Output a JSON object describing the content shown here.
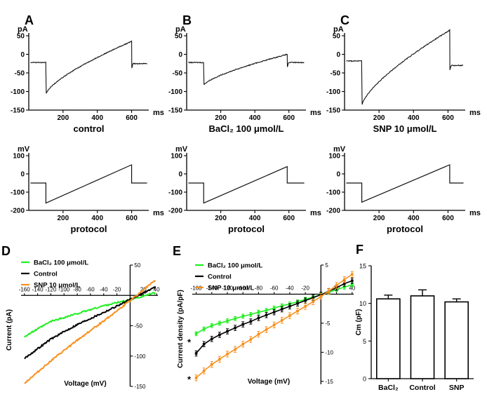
{
  "colors": {
    "bacl2": "#22ee22",
    "control": "#000000",
    "snp": "#f7901e",
    "trace": "#111111"
  },
  "chart_data": [
    {
      "id": "A",
      "type": "line",
      "panel_label": "A",
      "caption": "control",
      "ylabel": "pA",
      "xlabel": "ms",
      "xlim": [
        0,
        700
      ],
      "ylim": [
        -150,
        50
      ],
      "xticks": [
        200,
        400,
        600
      ],
      "yticks": [
        50,
        0,
        -50,
        -100,
        -150
      ],
      "trace": {
        "baseline": -22,
        "step_on": 100,
        "step_off": 600,
        "start": -105,
        "end": 35,
        "tail": -25
      }
    },
    {
      "id": "B",
      "type": "line",
      "panel_label": "B",
      "caption": "BaCl₂ 100 μmol/L",
      "ylabel": "pA",
      "xlabel": "ms",
      "xlim": [
        0,
        700
      ],
      "ylim": [
        -150,
        50
      ],
      "xticks": [
        200,
        400,
        600
      ],
      "yticks": [
        50,
        0,
        -50,
        -100,
        -150
      ],
      "trace": {
        "baseline": -22,
        "step_on": 100,
        "step_off": 590,
        "start": -82,
        "end": 0,
        "tail": -22
      }
    },
    {
      "id": "C",
      "type": "line",
      "panel_label": "C",
      "caption": "SNP 10 μmol/L",
      "ylabel": "pA",
      "xlabel": "ms",
      "xlim": [
        0,
        700
      ],
      "ylim": [
        -150,
        50
      ],
      "xticks": [
        200,
        400,
        600
      ],
      "yticks": [
        50,
        0,
        -50,
        -100,
        -150
      ],
      "trace": {
        "baseline": -18,
        "step_on": 100,
        "step_off": 610,
        "start": -135,
        "end": 65,
        "tail": -30
      }
    },
    {
      "id": "PA",
      "type": "line",
      "caption": "protocol",
      "ylabel": "mV",
      "xlabel": "ms",
      "xlim": [
        0,
        700
      ],
      "ylim": [
        -200,
        100
      ],
      "xticks": [
        200,
        400,
        600
      ],
      "yticks": [
        100,
        0,
        -100,
        -200
      ],
      "trace": {
        "hold": -50,
        "step_on": 100,
        "step_off": 600,
        "start": -160,
        "end": 50
      }
    },
    {
      "id": "PB",
      "type": "line",
      "caption": "protocol",
      "ylabel": "mV",
      "xlabel": "ms",
      "xlim": [
        0,
        700
      ],
      "ylim": [
        -200,
        100
      ],
      "xticks": [
        200,
        400,
        600
      ],
      "yticks": [
        100,
        0,
        -100,
        -200
      ],
      "trace": {
        "hold": -50,
        "step_on": 100,
        "step_off": 590,
        "start": -160,
        "end": 40
      }
    },
    {
      "id": "PC",
      "type": "line",
      "caption": "protocol",
      "ylabel": "mV",
      "xlabel": "ms",
      "xlim": [
        0,
        700
      ],
      "ylim": [
        -200,
        100
      ],
      "xticks": [
        200,
        400,
        600
      ],
      "yticks": [
        100,
        0,
        -100,
        -200
      ],
      "trace": {
        "hold": -50,
        "step_on": 100,
        "step_off": 610,
        "start": -155,
        "end": 50
      }
    },
    {
      "id": "D",
      "type": "line",
      "panel_label": "D",
      "title": "",
      "xlabel": "Voltage (mV)",
      "ylabel": "Current (pA)",
      "xlim": [
        -165,
        42
      ],
      "ylim": [
        -150,
        50
      ],
      "xticks": [
        -160,
        -140,
        -120,
        -100,
        -80,
        -60,
        -40,
        -20,
        20,
        40
      ],
      "yticks": [
        50,
        -50,
        -100,
        -150
      ],
      "series": [
        {
          "name": "BaCl₂ 100 μmol/L",
          "color_key": "bacl2",
          "x": [
            -160,
            -120,
            -80,
            -40,
            0,
            40
          ],
          "y": [
            -68,
            -43,
            -30,
            -17,
            -7,
            5
          ]
        },
        {
          "name": "Control",
          "color_key": "control",
          "x": [
            -160,
            -120,
            -80,
            -40,
            0,
            40
          ],
          "y": [
            -104,
            -72,
            -48,
            -28,
            -7,
            15
          ]
        },
        {
          "name": "SNP 10 μmol/L",
          "color_key": "snp",
          "x": [
            -160,
            -120,
            -80,
            -40,
            0,
            40
          ],
          "y": [
            -145,
            -108,
            -74,
            -42,
            -9,
            27
          ]
        }
      ]
    },
    {
      "id": "E",
      "type": "line",
      "panel_label": "E",
      "title": "",
      "xlabel": "Voltage (mV)",
      "ylabel": "Current density (pA/pF)",
      "xlim": [
        -165,
        42
      ],
      "ylim": [
        -15.5,
        5
      ],
      "xticks": [
        -160,
        -140,
        -120,
        -100,
        -80,
        -60,
        -40,
        -20,
        20,
        40
      ],
      "yticks": [
        5,
        -5,
        -10,
        -15
      ],
      "annotations": [
        "*",
        "*"
      ],
      "series": [
        {
          "name": "BaCl₂ 100 μmol/L",
          "color_key": "bacl2",
          "x": [
            -160,
            -150,
            -140,
            -130,
            -120,
            -110,
            -100,
            -90,
            -80,
            -70,
            -60,
            -50,
            -40,
            -30,
            -20,
            -10,
            0,
            10,
            20,
            30,
            40
          ],
          "y": [
            -6.8,
            -6.0,
            -5.4,
            -5.0,
            -4.6,
            -4.2,
            -3.8,
            -3.5,
            -3.1,
            -2.8,
            -2.4,
            -2.0,
            -1.7,
            -1.3,
            -0.9,
            -0.5,
            -0.1,
            0.3,
            0.8,
            1.2,
            1.6
          ],
          "err": 0.35
        },
        {
          "name": "Control",
          "color_key": "control",
          "x": [
            -160,
            -150,
            -140,
            -130,
            -120,
            -110,
            -100,
            -90,
            -80,
            -70,
            -60,
            -50,
            -40,
            -30,
            -20,
            -10,
            0,
            10,
            20,
            30,
            40
          ],
          "y": [
            -10.2,
            -8.6,
            -7.7,
            -7.0,
            -6.4,
            -5.8,
            -5.2,
            -4.7,
            -4.1,
            -3.6,
            -3.1,
            -2.6,
            -2.1,
            -1.6,
            -1.1,
            -0.6,
            -0.1,
            0.5,
            1.1,
            1.8,
            2.3
          ],
          "err": 0.45
        },
        {
          "name": "SNP 10 μmol/L",
          "color_key": "snp",
          "x": [
            -160,
            -150,
            -140,
            -130,
            -120,
            -110,
            -100,
            -90,
            -80,
            -70,
            -60,
            -50,
            -40,
            -30,
            -20,
            -10,
            0,
            10,
            20,
            30,
            40
          ],
          "y": [
            -14.4,
            -13.2,
            -12.1,
            -11.2,
            -10.3,
            -9.5,
            -8.6,
            -7.8,
            -6.9,
            -6.1,
            -5.3,
            -4.5,
            -3.7,
            -2.9,
            -2.1,
            -1.3,
            -0.4,
            0.5,
            1.5,
            2.5,
            3.4
          ],
          "err": 0.5
        }
      ]
    },
    {
      "id": "F",
      "type": "bar",
      "panel_label": "F",
      "categories": [
        "BaCl₂",
        "Control",
        "SNP"
      ],
      "values": [
        10.6,
        11.0,
        10.2
      ],
      "errors": [
        0.5,
        0.8,
        0.4
      ],
      "ylabel": "Cm (pF)",
      "ylim": [
        0,
        15
      ],
      "yticks": [
        0,
        5,
        10,
        15
      ]
    }
  ]
}
